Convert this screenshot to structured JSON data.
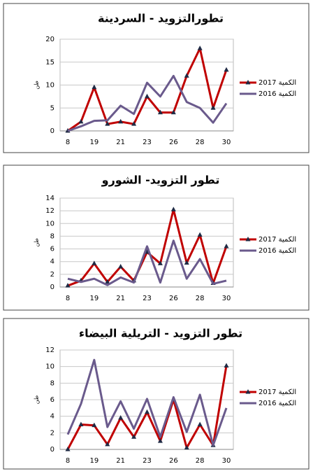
{
  "chart_data": [
    {
      "type": "line",
      "title": "تطورالتزويد - السردينة",
      "y_label": "طن",
      "categories": [
        "8",
        null,
        "19",
        null,
        "21",
        null,
        "23",
        null,
        "26",
        null,
        "28",
        null,
        "30"
      ],
      "ylim": [
        0,
        20
      ],
      "yticks": [
        0,
        5,
        10,
        15,
        20
      ],
      "grid": true,
      "series": [
        {
          "name": "الكمية 2017",
          "color": "#c00000",
          "values": [
            0,
            2,
            9.5,
            1.5,
            2,
            1.5,
            7.5,
            4,
            4,
            12,
            18,
            5,
            13.3
          ]
        },
        {
          "name": "الكمية 2016",
          "color": "#6a5a8c",
          "values": [
            0,
            1,
            2.2,
            2.3,
            5.5,
            3.7,
            10.5,
            7.5,
            12,
            6.3,
            5,
            1.8,
            6
          ]
        }
      ]
    },
    {
      "type": "line",
      "title": "تطور التزويد- الشورو",
      "y_label": "طن",
      "categories": [
        "8",
        null,
        "19",
        null,
        "21",
        null,
        "23",
        null,
        "26",
        null,
        "28",
        null,
        "30"
      ],
      "ylim": [
        0,
        14
      ],
      "yticks": [
        0,
        2,
        4,
        6,
        8,
        10,
        12,
        14
      ],
      "grid": true,
      "series": [
        {
          "name": "الكمية 2017",
          "color": "#c00000",
          "values": [
            0.2,
            1,
            3.7,
            0.8,
            3.2,
            1,
            5.5,
            3.7,
            12.2,
            3.8,
            8.2,
            0.6,
            6.4
          ]
        },
        {
          "name": "الكمية 2016",
          "color": "#6a5a8c",
          "values": [
            1.3,
            0.8,
            1.3,
            0.3,
            1.5,
            0.7,
            6.4,
            0.7,
            7.3,
            1.3,
            4.4,
            0.5,
            1
          ]
        }
      ]
    },
    {
      "type": "line",
      "title": "تطور التزويد - التريلية البيضاء",
      "y_label": "طن",
      "categories": [
        "8",
        null,
        "19",
        null,
        "21",
        null,
        "23",
        null,
        "26",
        null,
        "28",
        null,
        "30"
      ],
      "ylim": [
        0,
        12
      ],
      "yticks": [
        0,
        2,
        4,
        6,
        8,
        10,
        12
      ],
      "grid": true,
      "series": [
        {
          "name": "الكمية 2017",
          "color": "#c00000",
          "values": [
            0,
            3,
            2.9,
            0.6,
            3.8,
            1.5,
            4.5,
            1,
            6,
            0.2,
            3,
            0.5,
            10.1
          ]
        },
        {
          "name": "الكمية 2016",
          "color": "#6a5a8c",
          "values": [
            1.8,
            5.5,
            10.8,
            2.7,
            5.8,
            2.5,
            6.1,
            1.5,
            6.3,
            2.1,
            6.6,
            0.5,
            5
          ]
        }
      ]
    }
  ]
}
